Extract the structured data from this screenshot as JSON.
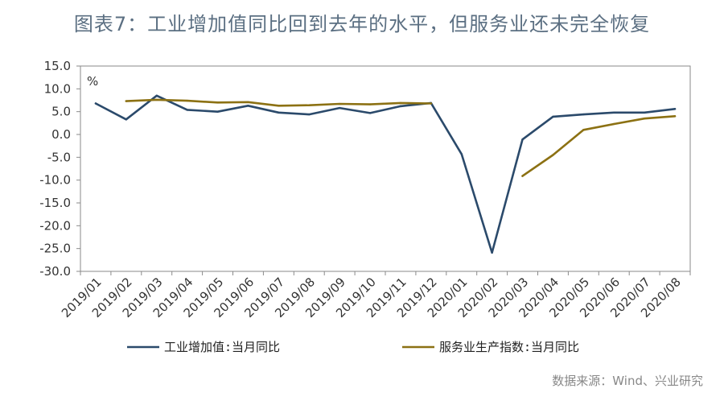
{
  "title": "图表7：工业增加值同比回到去年的水平，但服务业还未完全恢复",
  "source": "数据来源：Wind、兴业研究",
  "chart_data": {
    "type": "line",
    "unit_label": "%",
    "categories": [
      "2019/01",
      "2019/02",
      "2019/03",
      "2019/04",
      "2019/05",
      "2019/06",
      "2019/07",
      "2019/08",
      "2019/09",
      "2019/10",
      "2019/11",
      "2019/12",
      "2020/01",
      "2020/02",
      "2020/03",
      "2020/04",
      "2020/05",
      "2020/06",
      "2020/07",
      "2020/08"
    ],
    "ylim": [
      -30,
      15
    ],
    "yticks": [
      "15.0",
      "10.0",
      "5.0",
      "0.0",
      "-5.0",
      "-10.0",
      "-15.0",
      "-20.0",
      "-25.0",
      "-30.0"
    ],
    "grid": false,
    "legend_position": "bottom",
    "series": [
      {
        "name": "工业增加值:当月同比",
        "color": "#2b4a6b",
        "values": [
          6.8,
          3.3,
          8.5,
          5.4,
          5.0,
          6.3,
          4.8,
          4.4,
          5.8,
          4.7,
          6.2,
          6.9,
          -4.3,
          -25.9,
          -1.1,
          3.9,
          4.4,
          4.8,
          4.8,
          5.6
        ]
      },
      {
        "name": "服务业生产指数:当月同比",
        "color": "#8c7113",
        "values": [
          null,
          7.3,
          7.6,
          7.4,
          7.0,
          7.1,
          6.3,
          6.4,
          6.7,
          6.6,
          6.9,
          6.8,
          null,
          null,
          -9.1,
          -4.5,
          1.0,
          2.3,
          3.5,
          4.0
        ]
      }
    ]
  }
}
